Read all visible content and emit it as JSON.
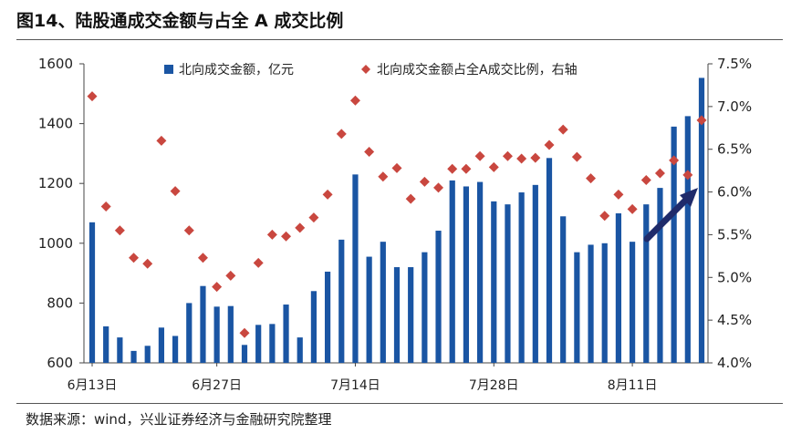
{
  "title": "图14、陆股通成交金额与占全 A 成交比例",
  "source": "数据来源：wind，兴业证券经济与金融研究院整理",
  "colors": {
    "bar": "#1a55a3",
    "point": "#c9473f",
    "arrow": "#1f2b6b",
    "axis": "#444444"
  },
  "chart_data": {
    "type": "bar+scatter",
    "x_tick_labels": [
      "6月13日",
      "6月27日",
      "7月14日",
      "7月28日",
      "8月11日"
    ],
    "x_tick_indices": [
      0,
      9,
      19,
      29,
      39
    ],
    "y_left": {
      "lim": [
        600,
        1600
      ],
      "ticks": [
        600,
        800,
        1000,
        1200,
        1400,
        1600
      ],
      "tick_labels": [
        "600",
        "800",
        "1000",
        "1200",
        "1400",
        "1600"
      ]
    },
    "y_right": {
      "lim": [
        4.0,
        7.5
      ],
      "ticks": [
        4.0,
        4.5,
        5.0,
        5.5,
        6.0,
        6.5,
        7.0,
        7.5
      ],
      "tick_labels": [
        "4.0%",
        "4.5%",
        "5.0%",
        "5.5%",
        "6.0%",
        "6.5%",
        "7.0%",
        "7.5%"
      ]
    },
    "legend": {
      "placement": "top",
      "bar_label": "北向成交金额，亿元",
      "point_label": "北向成交金额占全A成交比例，右轴"
    },
    "series": [
      {
        "name": "北向成交金额，亿元",
        "kind": "bar",
        "axis": "left",
        "values": [
          1070,
          722,
          685,
          640,
          657,
          718,
          690,
          800,
          857,
          788,
          790,
          660,
          727,
          730,
          795,
          685,
          840,
          905,
          1012,
          1230,
          955,
          1005,
          920,
          920,
          970,
          1042,
          1210,
          1190,
          1205,
          1140,
          1130,
          1170,
          1195,
          1285,
          1090,
          970,
          995,
          1000,
          1100,
          1005,
          1130,
          1185,
          1390,
          1425,
          1553
        ]
      },
      {
        "name": "北向成交金额占全A成交比例，右轴",
        "kind": "scatter",
        "axis": "right",
        "values": [
          7.12,
          5.83,
          5.55,
          5.23,
          5.16,
          6.6,
          6.01,
          5.55,
          5.23,
          4.89,
          5.02,
          4.35,
          5.17,
          5.5,
          5.48,
          5.58,
          5.7,
          5.97,
          6.68,
          7.07,
          6.47,
          6.18,
          6.28,
          5.92,
          6.12,
          6.05,
          6.27,
          6.27,
          6.42,
          6.29,
          6.42,
          6.39,
          6.4,
          6.55,
          6.73,
          6.41,
          6.16,
          5.72,
          5.97,
          5.8,
          6.14,
          6.22,
          6.37,
          6.2,
          6.84
        ]
      }
    ]
  }
}
